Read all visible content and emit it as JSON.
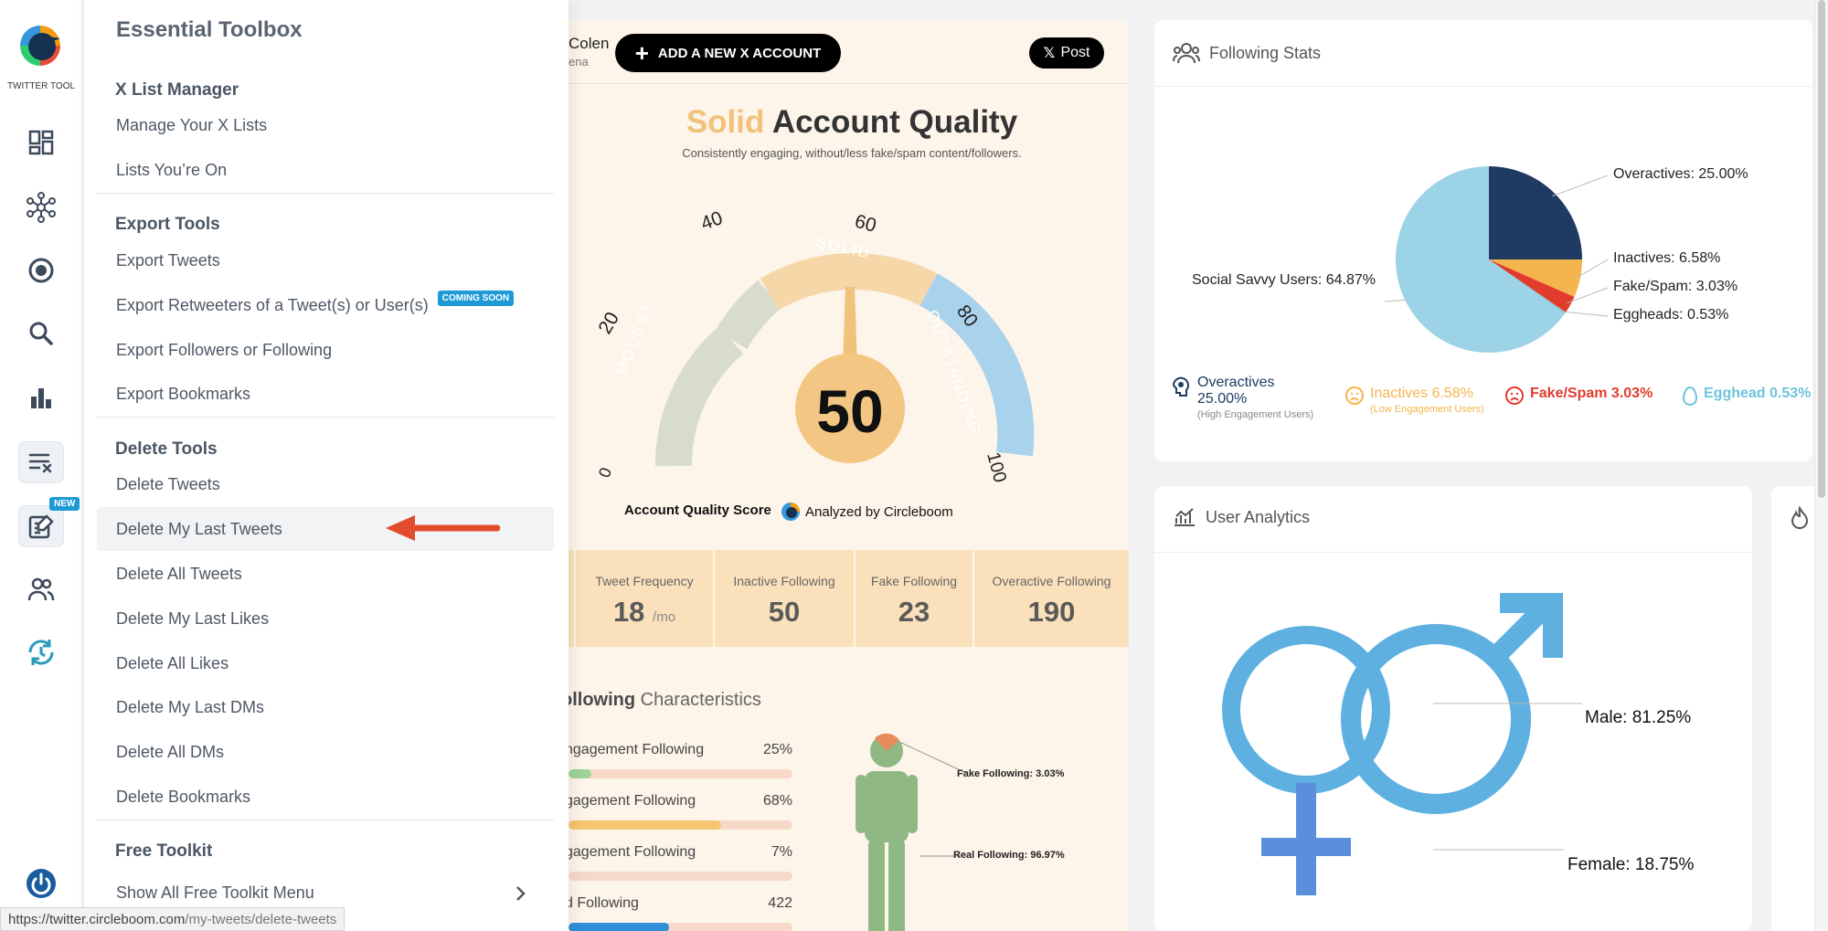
{
  "app": {
    "logo_text": "TWITTER TOOL",
    "new_badge": "NEW"
  },
  "rail": [
    "dashboard-icon",
    "network-icon",
    "target-icon",
    "search-icon",
    "bar-chart-icon",
    "delete-list-icon",
    "edit-document-icon",
    "users-icon",
    "sync-icon",
    "power-icon"
  ],
  "menu": {
    "title": "Essential Toolbox",
    "list_manager": {
      "title": "X List Manager",
      "items": [
        "Manage Your X Lists",
        "Lists You’re On"
      ]
    },
    "export_tools": {
      "title": "Export Tools",
      "items": [
        "Export Tweets",
        "Export Retweeters of a Tweet(s) or User(s)",
        "Export Followers or Following",
        "Export Bookmarks"
      ],
      "coming_soon": "COMING SOON"
    },
    "delete_tools": {
      "title": "Delete Tools",
      "items": [
        "Delete Tweets",
        "Delete My Last Tweets",
        "Delete All Tweets",
        "Delete My Last Likes",
        "Delete All Likes",
        "Delete My Last DMs",
        "Delete All DMs",
        "Delete Bookmarks"
      ]
    },
    "free_toolkit": {
      "title": "Free Toolkit",
      "item": "Show All Free Toolkit Menu"
    }
  },
  "statusbar": {
    "host": "https://twitter.circleboom.com",
    "path": "/my-tweets/delete-tweets"
  },
  "center": {
    "account_name": "Colen",
    "account_sub": "ena",
    "add_button": "ADD A NEW X ACCOUNT",
    "post_button": "Post",
    "quality_word": "Solid",
    "quality_title": "Account Quality",
    "quality_sub": "Consistently engaging, without/less fake/spam content/followers.",
    "gauge": {
      "score": 50,
      "ticks": [
        "0",
        "20",
        "40",
        "60",
        "80",
        "100"
      ],
      "bands": [
        "MODEST",
        "SOLID",
        "OUTSTANDING"
      ]
    },
    "score_label": "Account Quality Score",
    "analyzed_by": "Analyzed by Circleboom",
    "metrics": [
      {
        "label": "Tweet Frequency",
        "value": "18",
        "unit": "/mo"
      },
      {
        "label": "Inactive Following",
        "value": "50"
      },
      {
        "label": "Fake Following",
        "value": "23"
      },
      {
        "label": "Overactive Following",
        "value": "190"
      }
    ],
    "characteristics": {
      "title_bold": "ollowing",
      "title_rest": "Characteristics",
      "rows": [
        {
          "label": "ngagement Following",
          "value": "25%",
          "fill": 0.1,
          "color": "#9fd39a"
        },
        {
          "label": "gagement Following",
          "value": "68%",
          "fill": 0.68,
          "color": "#f6c56f"
        },
        {
          "label": "gagement Following",
          "value": "7%",
          "fill": 0.0,
          "color": "#f6c56f"
        },
        {
          "label": "d Following",
          "value": "422",
          "fill": 0.45,
          "color": "#2f8fd8"
        }
      ]
    },
    "person": {
      "fake": "Fake Following: 3.03%",
      "real": "Real Following: 96.97%"
    }
  },
  "following_stats": {
    "title": "Following Stats",
    "chart_data": {
      "type": "pie",
      "title": "Following Stats",
      "labels": [
        "Overactives",
        "Inactives",
        "Fake/Spam",
        "Eggheads",
        "Social Savvy Users"
      ],
      "values": [
        25.0,
        6.58,
        3.03,
        0.53,
        64.87
      ],
      "colors": [
        "#1f3b63",
        "#f5b54e",
        "#e23b2e",
        "#8fd0e0",
        "#9dd3e6"
      ]
    },
    "pie_labels": [
      "Overactives: 25.00%",
      "Inactives: 6.58%",
      "Fake/Spam: 3.03%",
      "Eggheads: 0.53%",
      "Social Savvy Users: 64.87%"
    ],
    "legend": {
      "overactives": {
        "label": "Overactives",
        "value": "25.00%",
        "sub": "(High Engagement Users)"
      },
      "inactives": {
        "label": "Inactives 6.58%",
        "sub": "(Low Engagement Users)"
      },
      "fake": {
        "label": "Fake/Spam 3.03%"
      },
      "egghead": {
        "label": "Egghead 0.53%"
      }
    }
  },
  "user_analytics": {
    "title": "User Analytics",
    "male": "Male: 81.25%",
    "female": "Female: 18.75%"
  }
}
